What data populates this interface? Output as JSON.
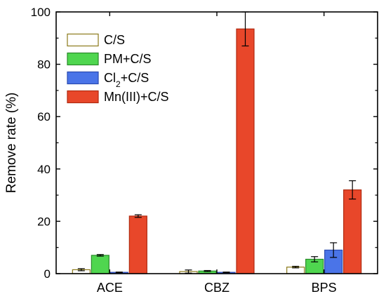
{
  "chart_data": {
    "type": "bar",
    "title": "",
    "xlabel": "",
    "ylabel": "Remove rate (%)",
    "ylim": [
      0,
      100
    ],
    "yticks": [
      "0",
      "20",
      "40",
      "60",
      "80",
      "100"
    ],
    "categories": [
      "ACE",
      "CBZ",
      "BPS"
    ],
    "legend_position": "top-left",
    "grid": false,
    "series": [
      {
        "name": "C/S",
        "color": "#ffffff",
        "edge": "#8b7a1a",
        "values": [
          1.5,
          0.8,
          2.5
        ],
        "errors": [
          0.4,
          0.6,
          0.3
        ]
      },
      {
        "name": "PM+C/S",
        "color": "#4fd64f",
        "edge": "#2a8a2a",
        "values": [
          7.0,
          1.0,
          5.5
        ],
        "errors": [
          0.3,
          0.2,
          1.0
        ]
      },
      {
        "name": "Cl2+C/S",
        "name_main": "Cl",
        "name_sub": "2",
        "name_rest": "+C/S",
        "color": "#4a74e8",
        "edge": "#2a4ab0",
        "values": [
          0.5,
          0.5,
          9.0
        ],
        "errors": [
          0.1,
          0.1,
          2.8
        ]
      },
      {
        "name": "Mn(III)+C/S",
        "color": "#e8472a",
        "edge": "#b02a10",
        "values": [
          22.0,
          93.5,
          32.0
        ],
        "errors": [
          0.5,
          6.5,
          3.5
        ]
      }
    ]
  }
}
